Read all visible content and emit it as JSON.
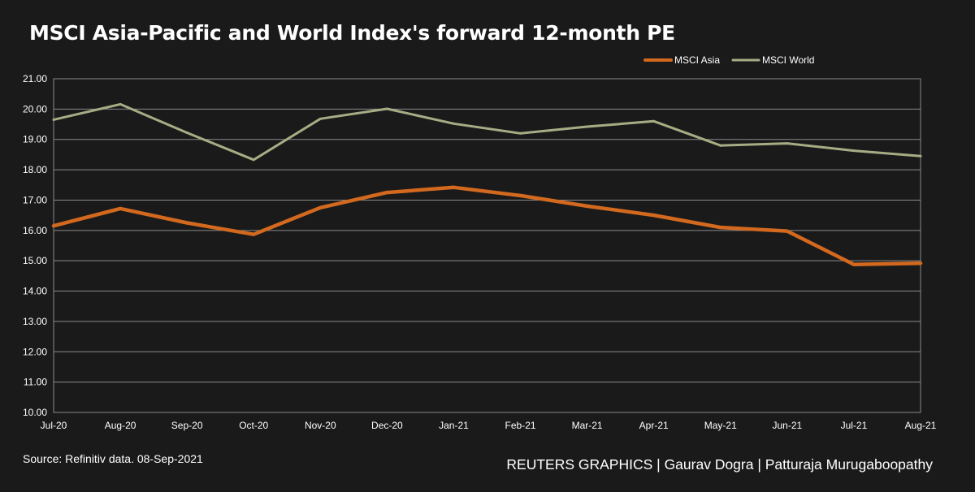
{
  "page": {
    "title": "MSCI Asia-Pacific and World Index's forward 12-month PE",
    "source": "Source: Refinitiv data. 08-Sep-2021",
    "credit": "REUTERS GRAPHICS | Gaurav Dogra | Patturaja Murugaboopathy"
  },
  "colors": {
    "background": "#1b1a1b",
    "grid": "#8a8a8a",
    "text": "#ffffff"
  },
  "chart_data": {
    "type": "line",
    "title": "MSCI Asia-Pacific and World Index's forward 12-month PE",
    "xlabel": "",
    "ylabel": "",
    "categories": [
      "Jul-20",
      "Aug-20",
      "Sep-20",
      "Oct-20",
      "Nov-20",
      "Dec-20",
      "Jan-21",
      "Feb-21",
      "Mar-21",
      "Apr-21",
      "May-21",
      "Jun-21",
      "Jul-21",
      "Aug-21"
    ],
    "ylim": [
      10,
      21
    ],
    "yticks": [
      "10.00",
      "11.00",
      "12.00",
      "13.00",
      "14.00",
      "15.00",
      "16.00",
      "17.00",
      "18.00",
      "19.00",
      "20.00",
      "21.00"
    ],
    "grid": true,
    "legend_position": "top-right",
    "series": [
      {
        "name": "MSCI Asia",
        "color": "#d2691e",
        "values": [
          16.15,
          16.72,
          16.25,
          15.87,
          16.75,
          17.25,
          17.42,
          17.15,
          16.8,
          16.5,
          16.1,
          15.98,
          14.88,
          14.92
        ]
      },
      {
        "name": "MSCI World",
        "color": "#a6ad84",
        "values": [
          19.65,
          20.16,
          19.22,
          18.33,
          19.68,
          20.01,
          19.52,
          19.2,
          19.42,
          19.6,
          18.8,
          18.87,
          18.63,
          18.45
        ]
      }
    ]
  }
}
